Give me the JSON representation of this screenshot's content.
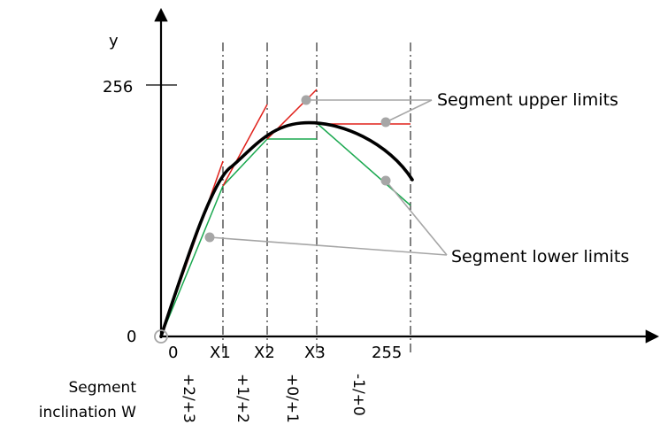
{
  "axes": {
    "y_label": "y",
    "y_tick_top": "256",
    "origin_label": "0",
    "x_ticks": [
      "0",
      "X1",
      "X2",
      "X3",
      "255"
    ]
  },
  "annotations": {
    "upper": "Segment upper limits",
    "lower": "Segment lower limits",
    "inclination_line1": "Segment",
    "inclination_line2": "inclination W"
  },
  "inclinations": [
    "+2/+3",
    "+1/+2",
    "+0/+1",
    "-1/+0"
  ],
  "colors": {
    "curve": "#000000",
    "upper_limit": "#e0201a",
    "lower_limit": "#1aa84f",
    "markers": "#a6a6a6",
    "leaders": "#a6a6a6"
  }
}
